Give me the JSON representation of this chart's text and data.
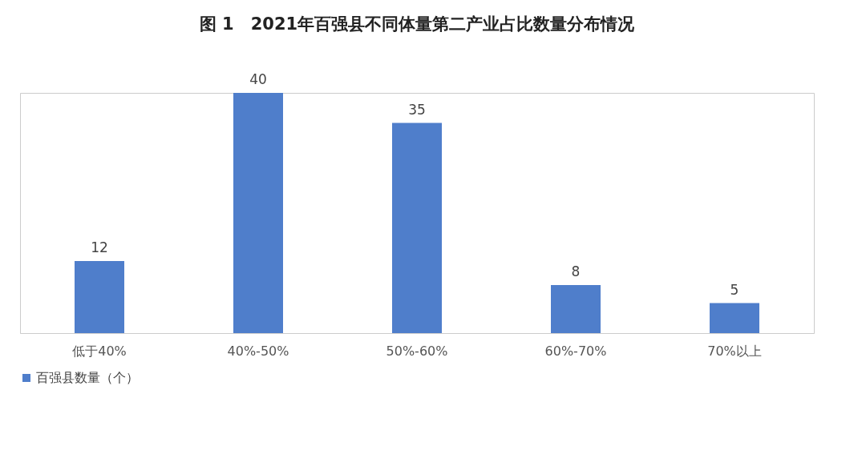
{
  "chart_data": {
    "type": "bar",
    "title": "图 1　2021年百强县不同体量第二产业占比数量分布情况",
    "categories": [
      "低于40%",
      "40%-50%",
      "50%-60%",
      "60%-70%",
      "70%以上"
    ],
    "series": [
      {
        "name": "百强县数量（个）",
        "color": "#4f7ecb",
        "values": [
          12,
          40,
          35,
          8,
          5
        ]
      }
    ],
    "data_labels": true,
    "legend": "bottom",
    "grid": false,
    "tick_labels": "x"
  }
}
